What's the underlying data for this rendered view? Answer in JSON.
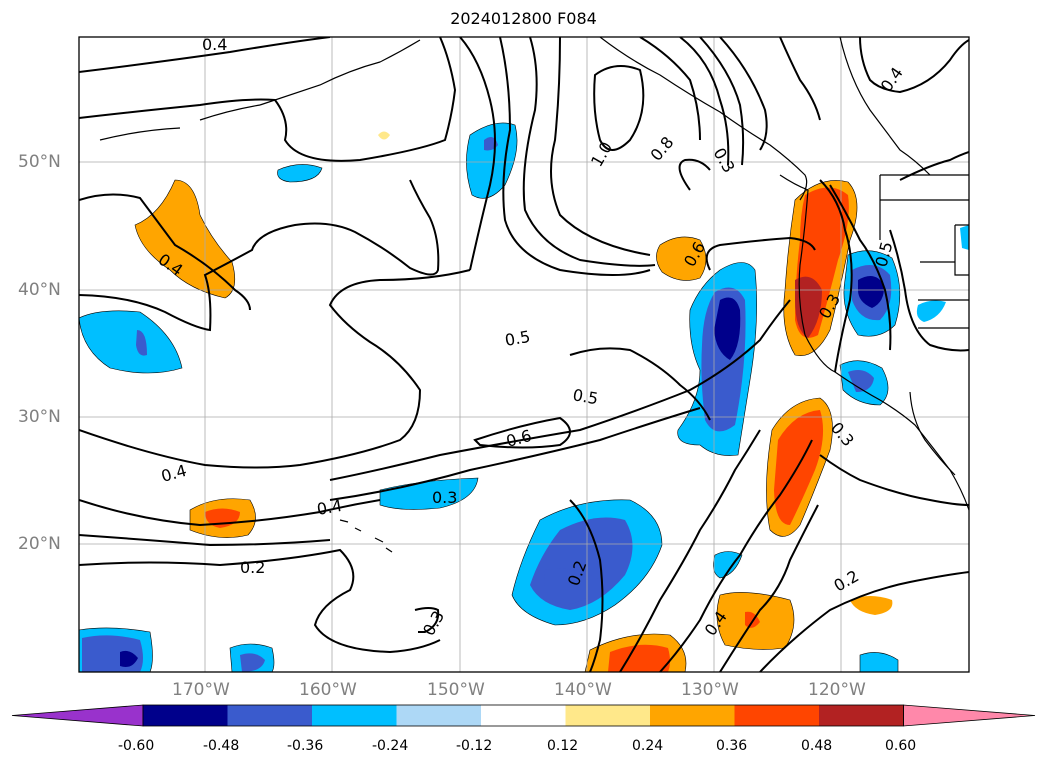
{
  "title": "2024012800 F084",
  "lat_labels": [
    "50°N",
    "40°N",
    "30°N",
    "20°N"
  ],
  "lon_labels": [
    "170°W",
    "160°W",
    "150°W",
    "140°W",
    "130°W",
    "120°W"
  ],
  "contour_labels": [
    "0.4",
    "0.4",
    "0.4",
    "0.4",
    "0.4",
    "0.4",
    "0.5",
    "0.5",
    "0.5",
    "0.6",
    "0.6",
    "0.8",
    "1.0",
    "0.2",
    "0.2",
    "0.2",
    "0.3",
    "0.3",
    "0.3",
    "0.3",
    "0.3"
  ],
  "colorbar": {
    "ticks": [
      "-0.60",
      "-0.48",
      "-0.36",
      "-0.24",
      "-0.12",
      "0.12",
      "0.24",
      "0.36",
      "0.48",
      "0.60"
    ],
    "colors": [
      "#9932cc",
      "#00008b",
      "#3a5bcd",
      "#00bfff",
      "#add8f6",
      "#ffffff",
      "#ffe88a",
      "#ffa500",
      "#ff4500",
      "#b22222",
      "#ff88aa"
    ]
  }
}
